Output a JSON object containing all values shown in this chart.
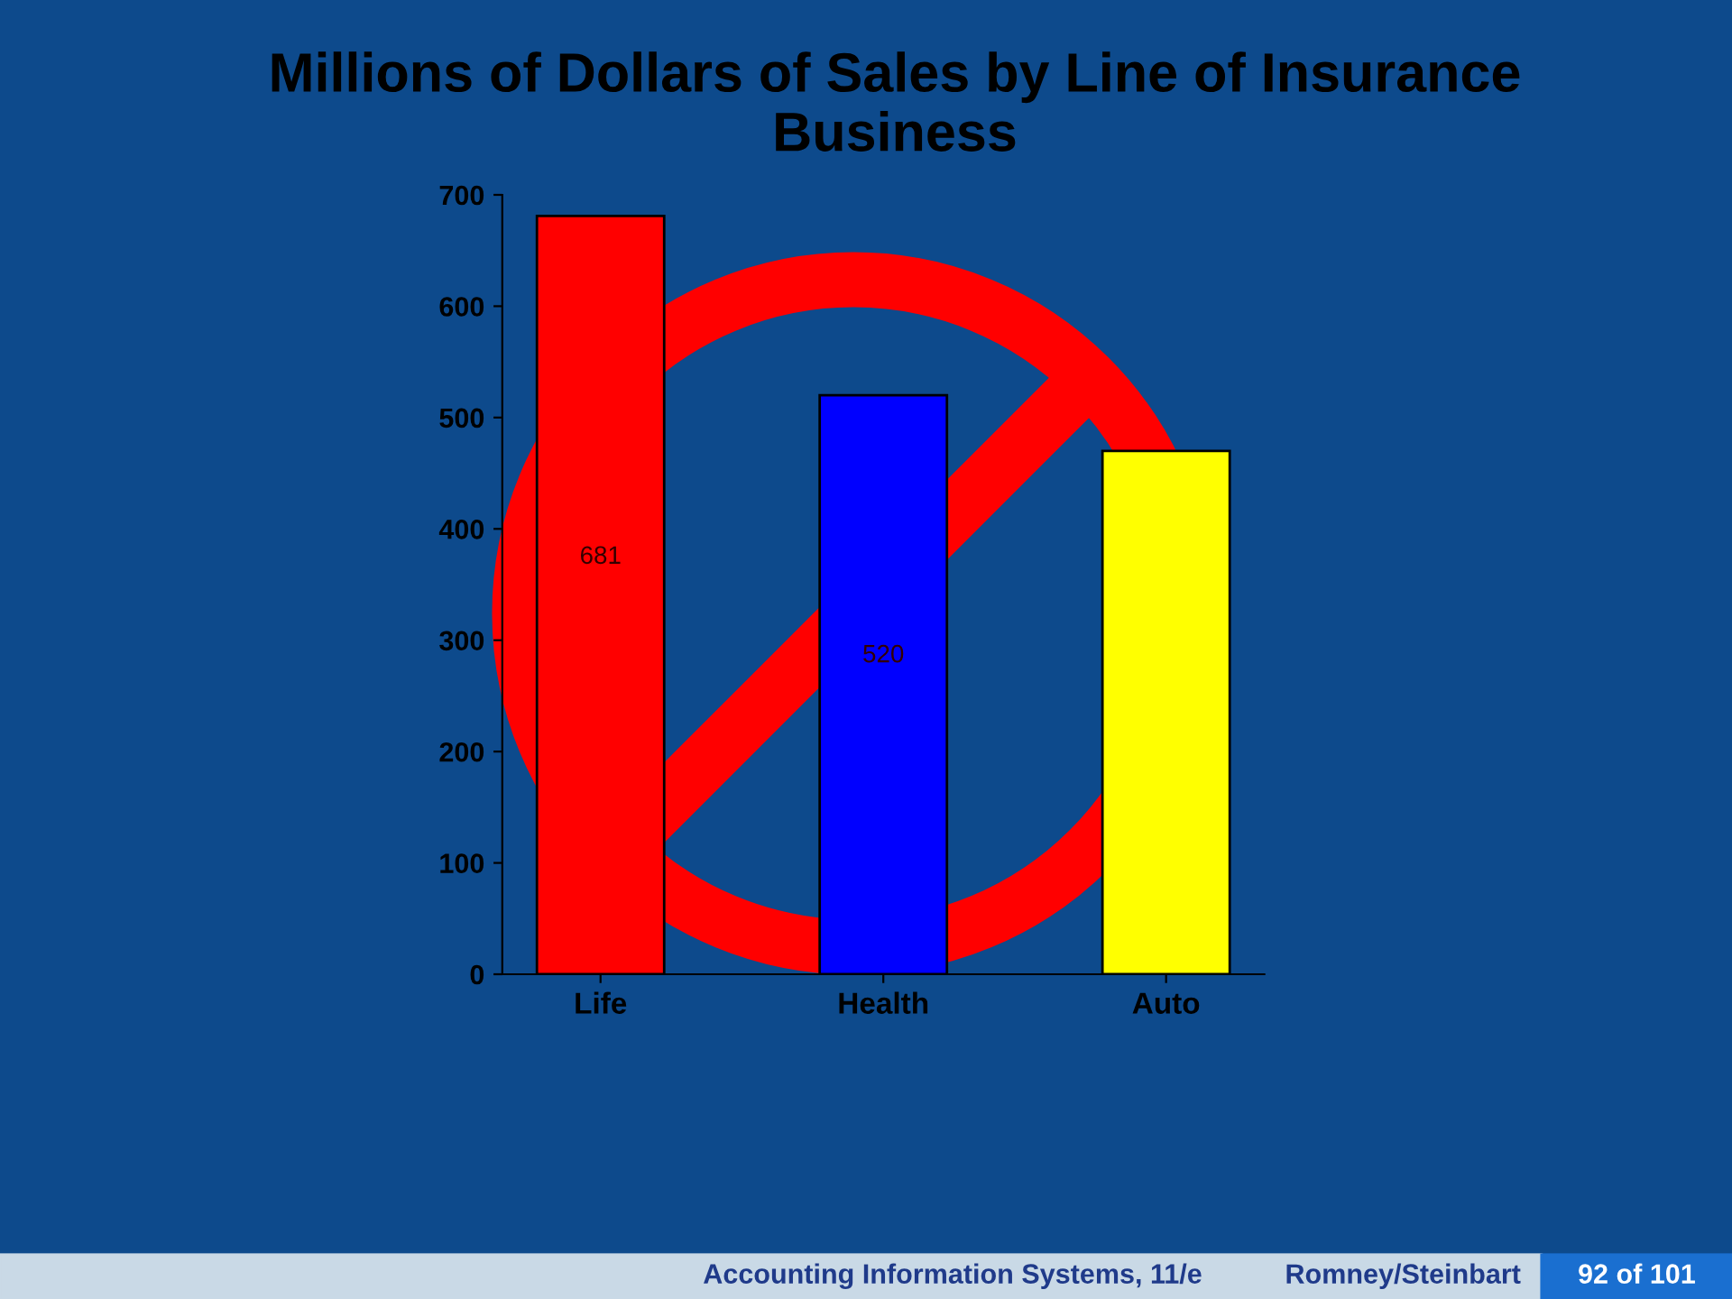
{
  "chart_data": {
    "type": "bar",
    "title": "Millions of Dollars of Sales by Line of Insurance Business",
    "categories": [
      "Life",
      "Health",
      "Auto"
    ],
    "series": [
      {
        "colors": [
          "#ff0000",
          "#0000ff",
          "#ffff00"
        ],
        "values": [
          681,
          520,
          470
        ],
        "value_labels": [
          "681",
          "520",
          null
        ]
      }
    ],
    "ylim": [
      0,
      700
    ],
    "yticks": [
      0,
      100,
      200,
      300,
      400,
      500,
      600,
      700
    ],
    "grid": false,
    "legend": false,
    "annotations": [
      "Accounting Information Systems, 11/e",
      "Romney/Steinbart",
      "92 of 101"
    ]
  }
}
